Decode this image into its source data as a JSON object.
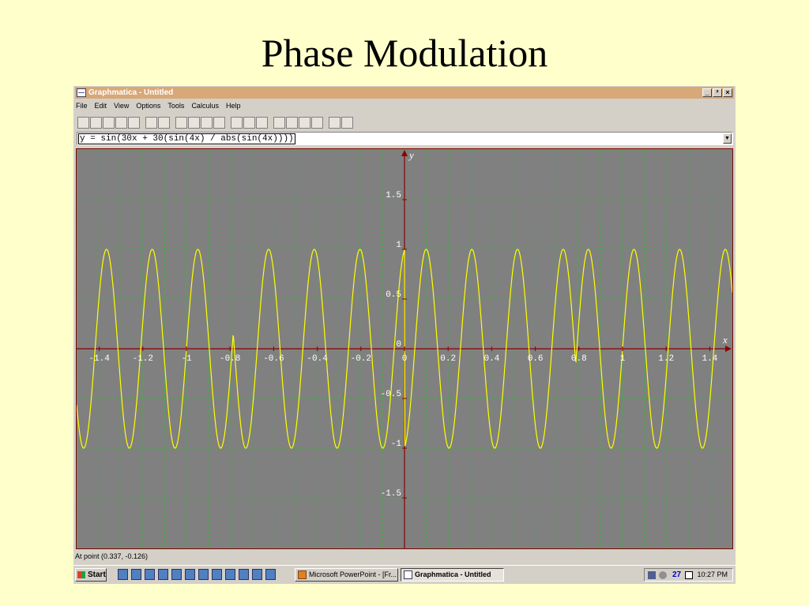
{
  "slide": {
    "title": "Phase Modulation"
  },
  "window": {
    "title": "Graphmatica - Untitled",
    "btn_min": "_",
    "btn_max": "²",
    "btn_close": "×"
  },
  "menu": [
    "File",
    "Edit",
    "View",
    "Options",
    "Tools",
    "Calculus",
    "Help"
  ],
  "equation": {
    "text": "y = sin(30x + 30(sin(4x) / abs(sin(4x))))",
    "dropdown_icon": "chevron-down-icon"
  },
  "colors": {
    "plot_bg": "#808080",
    "grid": "#3cb43c",
    "axis": "#8b0000",
    "curve": "#ffff00",
    "slide_bg": "#ffffcc"
  },
  "chart_data": {
    "type": "line",
    "function": "y = sin(30x + 30(sin(4x) / abs(sin(4x))))",
    "xlim": [
      -1.5,
      1.5
    ],
    "ylim": [
      -2.0,
      2.0
    ],
    "grid": true,
    "xlabel": "x",
    "ylabel": "y",
    "x_ticks": [
      "-1.4",
      "-1.2",
      "-1",
      "-0.8",
      "-0.6",
      "-0.4",
      "-0.2",
      "0",
      "0.2",
      "0.4",
      "0.6",
      "0.8",
      "1",
      "1.2",
      "1.4"
    ],
    "x_tick_values": [
      -1.4,
      -1.2,
      -1.0,
      -0.8,
      -0.6,
      -0.4,
      -0.2,
      0,
      0.2,
      0.4,
      0.6,
      0.8,
      1.0,
      1.2,
      1.4
    ],
    "y_ticks": [
      "1.5",
      "1",
      "0.5",
      "0",
      "-0.5",
      "-1",
      "-1.5"
    ],
    "y_tick_values": [
      1.5,
      1,
      0.5,
      0,
      -0.5,
      -1,
      -1.5
    ]
  },
  "status": {
    "text": "At point (0.337, -0.126)"
  },
  "taskbar": {
    "start": "Start",
    "tasks": [
      "Microsoft PowerPoint - [Fr...",
      "Graphmatica - Untitled"
    ],
    "badge": "27",
    "clock": "10:27 PM"
  }
}
